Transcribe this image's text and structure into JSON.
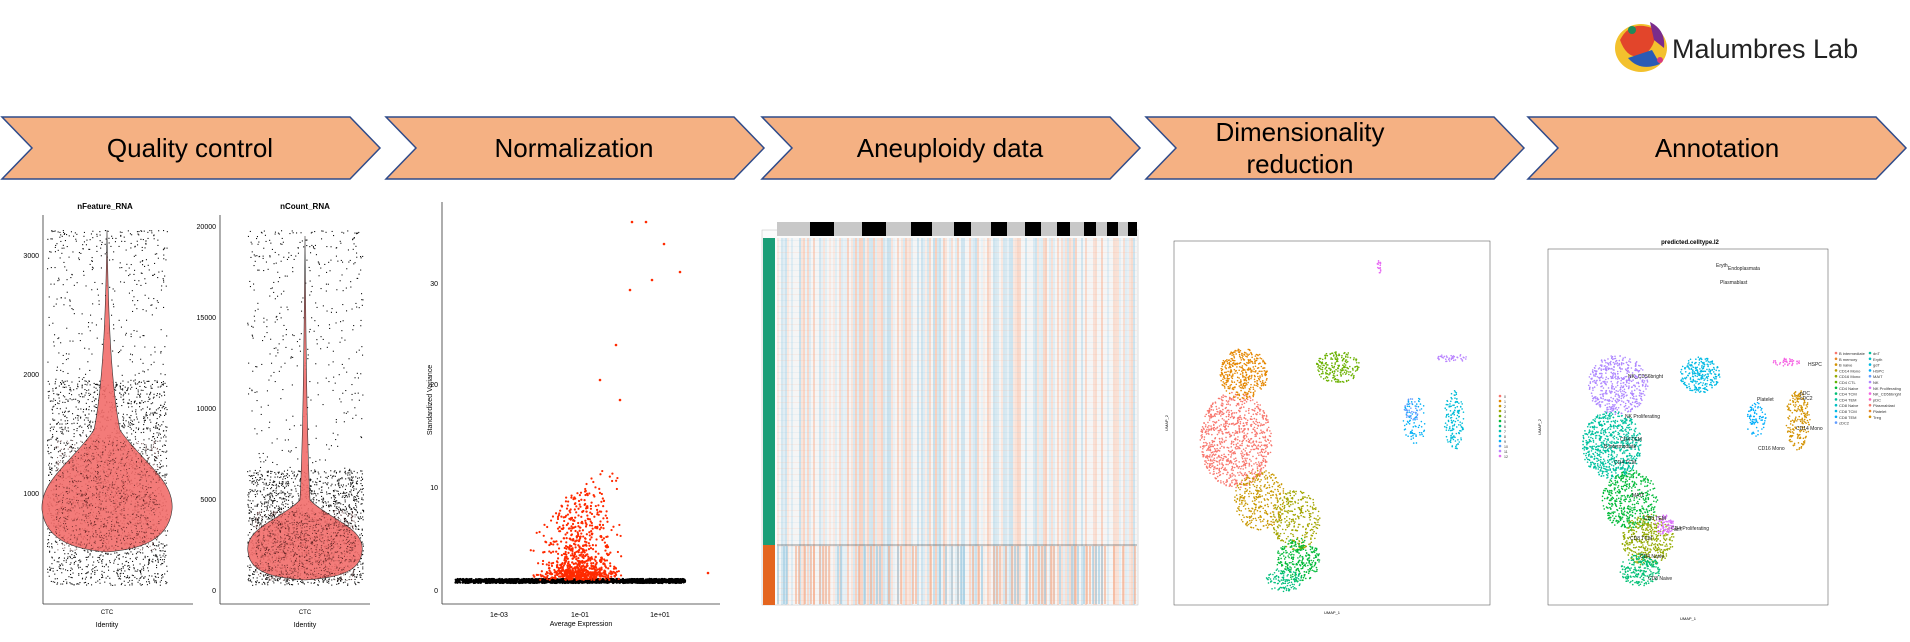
{
  "logo": {
    "text": "Malumbres Lab",
    "icon": "colorful-globe-logo-icon"
  },
  "pipeline": {
    "steps": [
      {
        "label": "Quality control"
      },
      {
        "label": "Normalization"
      },
      {
        "label": "Aneuploidy data"
      },
      {
        "label": "Dimensionality reduction"
      },
      {
        "label": "Annotation"
      }
    ],
    "arrow_fill": "#f5b183",
    "arrow_stroke": "#2f4b8a"
  },
  "qc": {
    "left": {
      "title": "nFeature_RNA",
      "yticks": [
        "3000",
        "2000",
        "1000"
      ],
      "xtick": "CTC",
      "xlabel": "Identity"
    },
    "right": {
      "title": "nCount_RNA",
      "yticks": [
        "20000",
        "15000",
        "10000",
        "5000",
        "0"
      ],
      "xtick": "CTC",
      "xlabel": "Identity"
    },
    "violin_color": "#f26d6a"
  },
  "norm": {
    "ylabel": "Standardized Variance",
    "xlabel": "Average Expression",
    "yticks": [
      "30",
      "20",
      "10",
      "0"
    ],
    "xticks": [
      "1e-03",
      "1e-01",
      "1e+01"
    ],
    "variable_color": "#ff2a00",
    "nonvariable_color": "#000000"
  },
  "aneu": {
    "pos_color": "#f4a582",
    "neg_color": "#92c5de",
    "bar1_color": "#1b9e77",
    "bar2_color": "#e4651f"
  },
  "umap1": {
    "xlabel": "UMAP_1",
    "ylabel": "UMAP_2",
    "legend": [
      "0",
      "1",
      "2",
      "3",
      "4",
      "5",
      "6",
      "7",
      "8",
      "9",
      "10",
      "11",
      "12"
    ],
    "colors": [
      "#f8766d",
      "#e58700",
      "#c99800",
      "#a3a500",
      "#6bb100",
      "#00ba38",
      "#00bf7d",
      "#00c0af",
      "#00bcd8",
      "#00b0f6",
      "#619cff",
      "#b983ff",
      "#e76bf3"
    ]
  },
  "annot": {
    "title": "predicted.celltype.l2",
    "xlabel": "UMAP_1",
    "ylabel": "UMAP_2",
    "cluster_labels": [
      "Eryth",
      "Endoplasmata",
      "Plasmablast",
      "HSPC",
      "NK_CD56bright",
      "NK Proliferating",
      "B intermediate",
      "CD4 TCM",
      "CD4 TEM",
      "MAIT",
      "CD8 TEM",
      "CD8 TCM",
      "CD4 Naive",
      "CD8 Naive",
      "CD4 Proliferating",
      "cDC2",
      "pDC",
      "Platelet",
      "CD16 Mono",
      "CD14 Mono",
      "dnT"
    ],
    "legend_col1": [
      "B intermediate",
      "B memory",
      "B naive",
      "CD14 Mono",
      "CD16 Mono",
      "CD4 CTL",
      "CD4 Naive",
      "CD4 TCM",
      "CD4 TEM",
      "CD8 Naive",
      "CD8 TCM",
      "CD8 TEM",
      "cDC2"
    ],
    "legend_col2": [
      "dnT",
      "Eryth",
      "gdT",
      "HSPC",
      "MAIT",
      "NK",
      "NK Proliferating",
      "NK_CD56bright",
      "pDC",
      "Plasmablast",
      "Platelet",
      "Treg"
    ]
  }
}
